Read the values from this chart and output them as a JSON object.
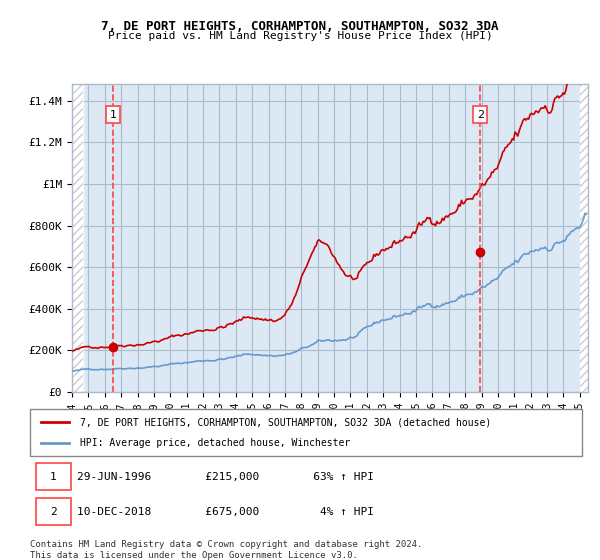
{
  "title1": "7, DE PORT HEIGHTS, CORHAMPTON, SOUTHAMPTON, SO32 3DA",
  "title2": "Price paid vs. HM Land Registry's House Price Index (HPI)",
  "ylabel_ticks": [
    "£0",
    "£200K",
    "£400K",
    "£600K",
    "£800K",
    "£1M",
    "£1.2M",
    "£1.4M"
  ],
  "ylabel_values": [
    0,
    200000,
    400000,
    600000,
    800000,
    1000000,
    1200000,
    1400000
  ],
  "ylim": [
    0,
    1480000
  ],
  "xlim_start": 1994.0,
  "xlim_end": 2025.5,
  "sale1_date": 1996.5,
  "sale1_price": 215000,
  "sale1_label": "1",
  "sale2_date": 2018.92,
  "sale2_price": 675000,
  "sale2_label": "2",
  "legend_line1": "7, DE PORT HEIGHTS, CORHAMPTON, SOUTHAMPTON, SO32 3DA (detached house)",
  "legend_line2": "HPI: Average price, detached house, Winchester",
  "ann1_label": "1",
  "ann1_text": "29-JUN-1996        £215,000        63% ↑ HPI",
  "ann2_label": "2",
  "ann2_text": "10-DEC-2018        £675,000        4% ↑ HPI",
  "footer": "Contains HM Land Registry data © Crown copyright and database right 2024.\nThis data is licensed under the Open Government Licence v3.0.",
  "hpi_color": "#6699cc",
  "price_color": "#cc0000",
  "dashed_color": "#ff4444",
  "marker_color": "#cc0000",
  "bg_color": "#dce9f5",
  "hatch_color": "#cccccc",
  "grid_color": "#aabbcc",
  "border_color": "#aabbcc"
}
